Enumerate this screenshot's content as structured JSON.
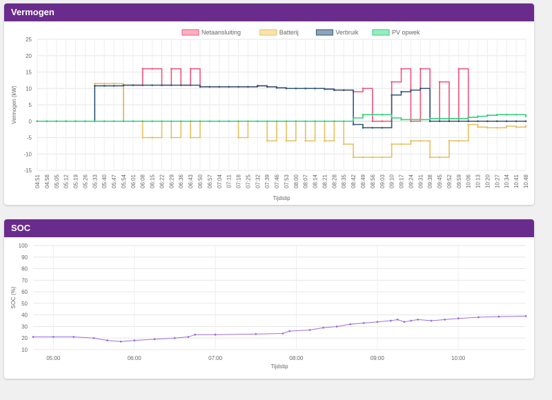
{
  "cards": [
    {
      "title": "Vermogen"
    },
    {
      "title": "SOC"
    }
  ],
  "chart_data": [
    {
      "type": "line",
      "ylabel": "Vermogen (kW)",
      "xlabel": "Tijdstip",
      "ylim": [
        -15,
        25
      ],
      "yticks": [
        25,
        20,
        15,
        10,
        5,
        0,
        -5,
        -10,
        -15
      ],
      "grid": true,
      "legend_position": "top",
      "categories": [
        "04:51",
        "04:58",
        "05:05",
        "05:12",
        "05:19",
        "05:26",
        "05:33",
        "05:40",
        "05:47",
        "05:54",
        "06:01",
        "06:08",
        "06:15",
        "06:22",
        "06:29",
        "06:36",
        "06:43",
        "06:50",
        "06:57",
        "07:04",
        "07:11",
        "07:18",
        "07:25",
        "07:32",
        "07:39",
        "07:46",
        "07:53",
        "08:00",
        "08:07",
        "08:14",
        "08:21",
        "08:28",
        "08:35",
        "08:42",
        "08:49",
        "08:56",
        "09:03",
        "09:10",
        "09:17",
        "09:24",
        "09:31",
        "09:38",
        "09:45",
        "09:52",
        "09:59",
        "10:06",
        "10:13",
        "10:20",
        "10:27",
        "10:34",
        "10:41",
        "10:48"
      ],
      "series": [
        {
          "name": "Netaansluiting",
          "color": "#f0527a",
          "fill": "#ffb1c1",
          "values": [
            0,
            0,
            0,
            0,
            0,
            0,
            0,
            0,
            0,
            11,
            11,
            16,
            16,
            11,
            16,
            11,
            16,
            10.5,
            10.5,
            10.5,
            10.5,
            10.5,
            10.5,
            10.8,
            10.5,
            10.2,
            10,
            10,
            10,
            10,
            9.8,
            9.5,
            9.5,
            9,
            10,
            0,
            0,
            12,
            16,
            0,
            16,
            0,
            12,
            0,
            16,
            0,
            0,
            0,
            0,
            0,
            0,
            0
          ]
        },
        {
          "name": "Batterij",
          "color": "#e7be5d",
          "fill": "#f9e3ad",
          "values": [
            0,
            0,
            0,
            0,
            0,
            0,
            11.5,
            11.5,
            11.5,
            0,
            0,
            -5,
            -5,
            0,
            -5,
            0,
            -5,
            0,
            0,
            0,
            0,
            -5,
            0,
            0,
            -6,
            0,
            -6,
            0,
            -6,
            0,
            -6,
            0,
            -7,
            -11,
            -11,
            -11,
            -11,
            -7,
            -7,
            -6,
            -6,
            -11,
            -11,
            -6,
            -6,
            -1,
            -1.8,
            -2,
            -2,
            -1.5,
            -1.8,
            -1.5
          ]
        },
        {
          "name": "Verbruik",
          "color": "#2f5576",
          "fill": "#8da4b9",
          "values": [
            0,
            0,
            0,
            0,
            0,
            0,
            10.8,
            10.8,
            10.8,
            11,
            11,
            11,
            11,
            11,
            11,
            11,
            11,
            10.5,
            10.5,
            10.5,
            10.5,
            10.5,
            10.5,
            10.8,
            10.5,
            10.2,
            10,
            10,
            10,
            10,
            9.8,
            9.5,
            9.5,
            -1,
            -2,
            -2,
            -2,
            8,
            9,
            9.5,
            10,
            0,
            0,
            0,
            0,
            0,
            0,
            0,
            0,
            0,
            0,
            0
          ]
        },
        {
          "name": "PV opwek",
          "color": "#2ecf7c",
          "fill": "#98ecc0",
          "values": [
            0,
            0,
            0,
            0,
            0,
            0,
            0,
            0,
            0,
            0,
            0,
            0,
            0,
            0,
            0,
            0,
            0,
            0,
            0,
            0,
            0,
            0,
            0,
            0,
            0,
            0,
            0,
            0,
            0,
            0,
            0,
            0,
            0,
            1,
            2,
            2,
            2,
            1,
            0.5,
            0.5,
            0.5,
            0.8,
            0.8,
            0.8,
            0.8,
            1.2,
            1.5,
            1.8,
            2,
            2,
            2,
            1.5
          ]
        }
      ]
    },
    {
      "type": "line",
      "ylabel": "SOC (%)",
      "xlabel": "Tijdstip",
      "ylim": [
        10,
        100
      ],
      "yticks": [
        100,
        90,
        80,
        70,
        60,
        50,
        40,
        30,
        20,
        10
      ],
      "xticks": [
        "05:00",
        "06:00",
        "07:00",
        "08:00",
        "09:00",
        "10:00"
      ],
      "grid": true,
      "color": "#9a6ee0",
      "x": [
        "04:45",
        "05:00",
        "05:15",
        "05:30",
        "05:40",
        "05:50",
        "06:00",
        "06:15",
        "06:30",
        "06:40",
        "06:45",
        "07:00",
        "07:30",
        "07:50",
        "07:55",
        "08:10",
        "08:20",
        "08:30",
        "08:40",
        "08:50",
        "09:00",
        "09:10",
        "09:15",
        "09:20",
        "09:25",
        "09:30",
        "09:40",
        "09:50",
        "10:00",
        "10:15",
        "10:30",
        "10:50"
      ],
      "values": [
        21,
        21,
        21,
        20,
        18,
        17,
        18,
        19,
        20,
        21,
        23,
        23,
        23.5,
        24,
        26,
        27,
        29,
        30,
        32,
        33,
        34,
        35,
        36,
        34,
        35,
        36,
        35,
        36,
        37,
        38,
        38.5,
        39
      ]
    }
  ]
}
